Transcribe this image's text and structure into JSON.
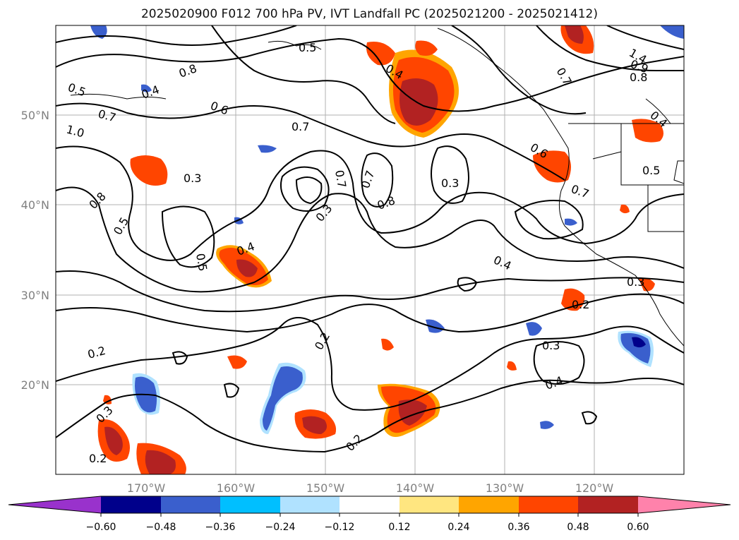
{
  "title": "2025020900 F012 700 hPa PV, IVT Landfall PC (2025021200 - 2025021412)",
  "map": {
    "lon_labels": [
      "170°W",
      "160°W",
      "150°W",
      "140°W",
      "130°W",
      "120°W"
    ],
    "lat_labels": [
      "50°N",
      "40°N",
      "30°N",
      "20°N"
    ],
    "contour_labels": [
      "0.5",
      "0.8",
      "0.4",
      "0.5",
      "0.6",
      "0.7",
      "1.0",
      "0.7",
      "0.3",
      "0.8",
      "0.5",
      "0.5",
      "0.4",
      "0.3",
      "0.7",
      "0.7",
      "0.8",
      "0.3",
      "0.4",
      "0.6",
      "0.7",
      "0.5",
      "0.4",
      "0.2",
      "0.3",
      "0.4",
      "0.2",
      "0.2",
      "0.3",
      "0.2",
      "0.2",
      "1.4",
      "0.9",
      "0.8",
      "0.7",
      "0.3",
      "0.4"
    ]
  },
  "colorbar": {
    "ticks": [
      "−0.60",
      "−0.48",
      "−0.36",
      "−0.24",
      "−0.12",
      "0.12",
      "0.24",
      "0.36",
      "0.48",
      "0.60"
    ],
    "colors": [
      "#9932cc",
      "#00008b",
      "#3a5fcd",
      "#00bfff",
      "#b0e2ff",
      "#ffffff",
      "#ffe680",
      "#ffa500",
      "#ff4500",
      "#b22222",
      "#ff82ab"
    ]
  },
  "fill_colors": {
    "orange_edge": "#ffa500",
    "red": "#ff4500",
    "dark_red": "#b22222",
    "light_blue": "#b0e2ff",
    "mid_blue": "#3a5fcd",
    "navy": "#00008b"
  }
}
